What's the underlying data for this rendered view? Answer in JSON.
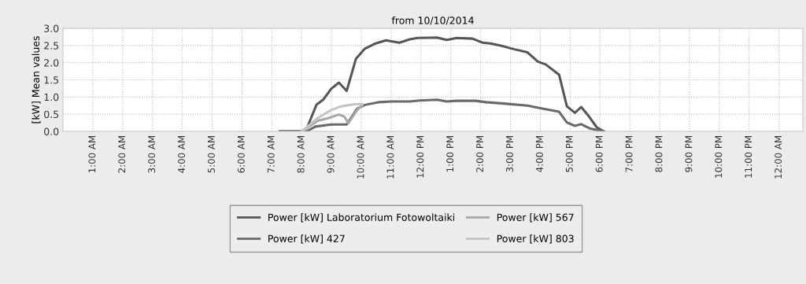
{
  "chart_data": {
    "type": "line",
    "title": "from 10/10/2014",
    "ylabel": "[kW] Mean values",
    "xlim": [
      0,
      24.8
    ],
    "ylim": [
      0,
      3.0
    ],
    "xticks": [
      {
        "value": 1,
        "label": "1:00 AM"
      },
      {
        "value": 2,
        "label": "2:00 AM"
      },
      {
        "value": 3,
        "label": "3:00 AM"
      },
      {
        "value": 4,
        "label": "4:00 AM"
      },
      {
        "value": 5,
        "label": "5:00 AM"
      },
      {
        "value": 6,
        "label": "6:00 AM"
      },
      {
        "value": 7,
        "label": "7:00 AM"
      },
      {
        "value": 8,
        "label": "8:00 AM"
      },
      {
        "value": 9,
        "label": "9:00 AM"
      },
      {
        "value": 10,
        "label": "10:00 AM"
      },
      {
        "value": 11,
        "label": "11:00 AM"
      },
      {
        "value": 12,
        "label": "12:00 PM"
      },
      {
        "value": 13,
        "label": "1:00 PM"
      },
      {
        "value": 14,
        "label": "2:00 PM"
      },
      {
        "value": 15,
        "label": "3:00 PM"
      },
      {
        "value": 16,
        "label": "4:00 PM"
      },
      {
        "value": 17,
        "label": "5:00 PM"
      },
      {
        "value": 18,
        "label": "6:00 PM"
      },
      {
        "value": 19,
        "label": "7:00 PM"
      },
      {
        "value": 20,
        "label": "8:00 PM"
      },
      {
        "value": 21,
        "label": "9:00 PM"
      },
      {
        "value": 22,
        "label": "10:00 PM"
      },
      {
        "value": 23,
        "label": "11:00 PM"
      },
      {
        "value": 24,
        "label": "12:00 AM"
      }
    ],
    "yticks": [
      {
        "value": 0,
        "label": "0.0"
      },
      {
        "value": 0.5,
        "label": "0.5"
      },
      {
        "value": 1,
        "label": "1.0"
      },
      {
        "value": 1.5,
        "label": "1.5"
      },
      {
        "value": 2,
        "label": "2.0"
      },
      {
        "value": 2.5,
        "label": "2.5"
      },
      {
        "value": 3,
        "label": "3.0"
      }
    ],
    "grid": true,
    "legend": "bottom",
    "marker": "none",
    "line_style": "solid",
    "series": [
      {
        "name": "Power [kW] Laboratorium Fotowoltaiki",
        "color": "#565656",
        "x": [
          7.27,
          8.01,
          8.19,
          8.5,
          8.72,
          8.99,
          9.25,
          9.51,
          9.82,
          10.12,
          10.48,
          10.83,
          11.27,
          11.62,
          11.88,
          12.54,
          12.86,
          13.2,
          13.73,
          14.07,
          14.33,
          14.7,
          15.13,
          15.57,
          15.92,
          16.18,
          16.63,
          16.89,
          17.16,
          17.37,
          17.6,
          17.89,
          18.13
        ],
        "values": [
          0,
          0,
          0.12,
          0.78,
          0.92,
          1.24,
          1.42,
          1.18,
          2.11,
          2.41,
          2.56,
          2.65,
          2.58,
          2.68,
          2.72,
          2.73,
          2.66,
          2.72,
          2.7,
          2.58,
          2.56,
          2.49,
          2.39,
          2.3,
          2.03,
          1.95,
          1.65,
          0.73,
          0.54,
          0.71,
          0.47,
          0.12,
          0
        ]
      },
      {
        "name": "Power [kW] 427",
        "color": "#6a6a6a",
        "x": [
          7.27,
          8.01,
          8.19,
          8.46,
          8.99,
          9.51,
          9.86,
          10.12,
          10.57,
          11.01,
          11.62,
          11.96,
          12.54,
          12.86,
          13.2,
          13.81,
          14.18,
          14.78,
          15.57,
          16.1,
          16.63,
          16.89,
          17.16,
          17.37,
          17.68,
          18.13
        ],
        "values": [
          0,
          0,
          0.01,
          0.14,
          0.2,
          0.2,
          0.66,
          0.77,
          0.85,
          0.87,
          0.87,
          0.9,
          0.92,
          0.87,
          0.89,
          0.89,
          0.85,
          0.81,
          0.75,
          0.66,
          0.57,
          0.26,
          0.16,
          0.21,
          0.08,
          0
        ]
      },
      {
        "name": "Power [kW] 567",
        "color": "#a8a8a8",
        "x": [
          8.01,
          8.54,
          8.91,
          9.25,
          9.43,
          9.57,
          9.86,
          10.04
        ],
        "values": [
          0,
          0.31,
          0.39,
          0.49,
          0.43,
          0.24,
          0.62,
          0.77
        ]
      },
      {
        "name": "Power [kW] 803",
        "color": "#c4c4c4",
        "x": [
          8.01,
          8.54,
          8.99,
          9.33,
          9.78,
          10.04
        ],
        "values": [
          0,
          0.39,
          0.62,
          0.73,
          0.79,
          0.79
        ]
      }
    ]
  }
}
